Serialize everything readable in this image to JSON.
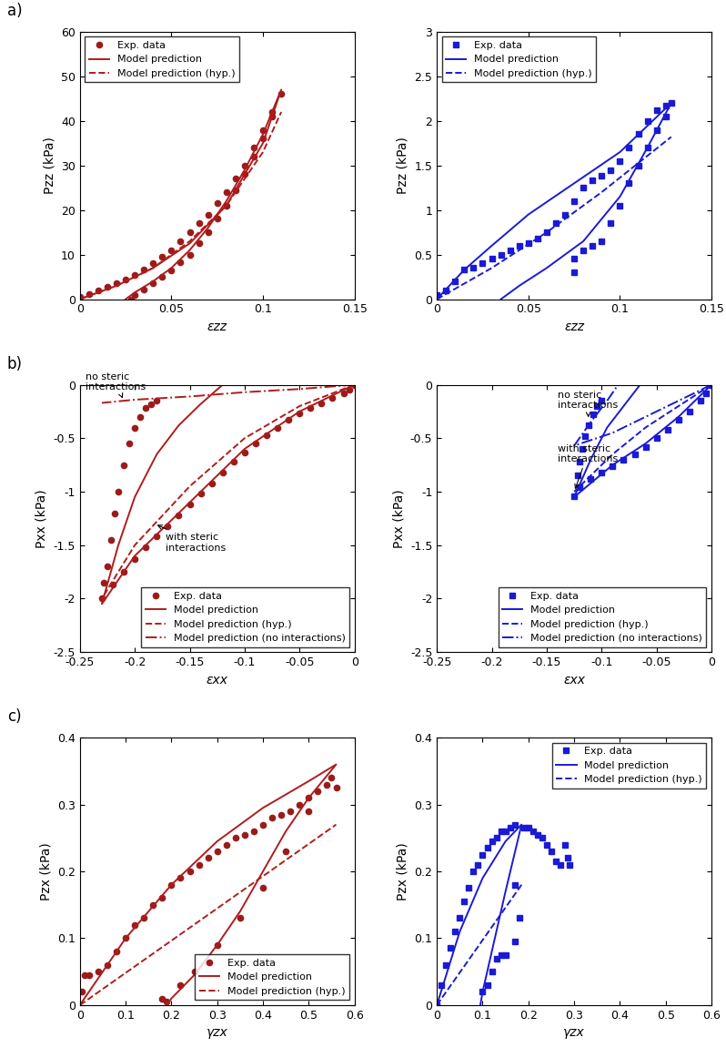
{
  "panel_labels": [
    "a)",
    "b)",
    "c)"
  ],
  "chart_data": [
    {
      "type": "line",
      "x_label": "εzz",
      "y_label": "Pzz (kPa)",
      "xlim": [
        0,
        0.15
      ],
      "xticks": [
        0,
        0.05,
        0.1,
        0.15
      ],
      "ylim": [
        0,
        60
      ],
      "yticks": [
        0,
        10,
        20,
        30,
        40,
        50,
        60
      ],
      "legend": "upper left",
      "series": [
        {
          "name": "Exp. data",
          "type": "scatter",
          "marker": "circle",
          "color": "#9b1b1b",
          "x": [
            0,
            0.005,
            0.01,
            0.015,
            0.02,
            0.025,
            0.03,
            0.035,
            0.04,
            0.045,
            0.05,
            0.055,
            0.06,
            0.065,
            0.07,
            0.075,
            0.08,
            0.085,
            0.09,
            0.095,
            0.1,
            0.105,
            0.11,
            0.105,
            0.1,
            0.095,
            0.09,
            0.085,
            0.08,
            0.075,
            0.07,
            0.065,
            0.06,
            0.055,
            0.05,
            0.045,
            0.04,
            0.035,
            0.03,
            0.028
          ],
          "values": [
            0.5,
            1.2,
            2,
            2.8,
            3.5,
            4.5,
            5.5,
            6.7,
            8,
            9.5,
            11,
            13,
            15,
            17,
            19,
            21.5,
            24,
            27,
            30,
            34,
            38,
            42,
            46,
            41,
            36,
            32,
            28,
            24.5,
            21,
            18,
            15,
            12.5,
            10,
            8.2,
            6.5,
            5,
            3.5,
            2.2,
            1,
            0
          ]
        },
        {
          "name": "Model prediction",
          "type": "line",
          "line_style": "solid",
          "color": "#b01c1c",
          "x": [
            0,
            0.02,
            0.04,
            0.06,
            0.08,
            0.1,
            0.11,
            0.1,
            0.09,
            0.08,
            0.07,
            0.06,
            0.05,
            0.04,
            0.03,
            0.025
          ],
          "values": [
            0,
            3,
            7,
            12.5,
            21,
            35,
            47,
            37,
            29,
            22,
            16,
            11,
            7,
            4,
            1.5,
            0
          ]
        },
        {
          "name": "Model prediction (hyp.)",
          "type": "line",
          "line_style": "dashed",
          "color": "#b01c1c",
          "x": [
            0,
            0.02,
            0.04,
            0.06,
            0.08,
            0.1,
            0.11
          ],
          "values": [
            0,
            3,
            7,
            13,
            21,
            33,
            42
          ]
        }
      ]
    },
    {
      "type": "line",
      "x_label": "εzz",
      "y_label": "Pzz (kPa)",
      "xlim": [
        0,
        0.15
      ],
      "xticks": [
        0,
        0.05,
        0.1,
        0.15
      ],
      "ylim": [
        0,
        3
      ],
      "yticks": [
        0,
        0.5,
        1,
        1.5,
        2,
        2.5,
        3
      ],
      "legend": "upper left",
      "series": [
        {
          "name": "Exp. data",
          "type": "scatter",
          "marker": "square",
          "color": "#1a1ad6",
          "x": [
            0,
            0.005,
            0.01,
            0.015,
            0.02,
            0.025,
            0.03,
            0.035,
            0.04,
            0.045,
            0.05,
            0.055,
            0.06,
            0.065,
            0.07,
            0.075,
            0.08,
            0.085,
            0.09,
            0.095,
            0.1,
            0.105,
            0.11,
            0.115,
            0.12,
            0.125,
            0.128,
            0.125,
            0.12,
            0.115,
            0.11,
            0.105,
            0.1,
            0.095,
            0.09,
            0.085,
            0.08,
            0.075,
            0.075
          ],
          "values": [
            0.05,
            0.1,
            0.2,
            0.33,
            0.35,
            0.4,
            0.45,
            0.5,
            0.55,
            0.6,
            0.63,
            0.68,
            0.75,
            0.85,
            0.95,
            1.1,
            1.25,
            1.33,
            1.38,
            1.45,
            1.55,
            1.7,
            1.85,
            2.0,
            2.12,
            2.17,
            2.2,
            2.05,
            1.9,
            1.7,
            1.5,
            1.3,
            1.05,
            0.85,
            0.65,
            0.6,
            0.55,
            0.45,
            0.3
          ]
        },
        {
          "name": "Model prediction",
          "type": "line",
          "line_style": "solid",
          "color": "#1a1ad6",
          "x": [
            0,
            0.015,
            0.03,
            0.05,
            0.075,
            0.1,
            0.128,
            0.115,
            0.1,
            0.08,
            0.06,
            0.045,
            0.035
          ],
          "values": [
            0,
            0.33,
            0.6,
            0.95,
            1.3,
            1.65,
            2.2,
            1.7,
            1.15,
            0.65,
            0.35,
            0.15,
            0
          ]
        },
        {
          "name": "Model prediction (hyp.)",
          "type": "line",
          "line_style": "dashed",
          "color": "#1a1ad6",
          "x": [
            0,
            0.03,
            0.06,
            0.09,
            0.128
          ],
          "values": [
            0,
            0.35,
            0.75,
            1.2,
            1.82
          ]
        }
      ]
    },
    {
      "type": "line",
      "x_label": "εxx",
      "y_label": "Pxx (kPa)",
      "xlim": [
        -0.25,
        0
      ],
      "xticks": [
        -0.25,
        -0.2,
        -0.15,
        -0.1,
        -0.05,
        0
      ],
      "ylim": [
        -2.5,
        0
      ],
      "yticks": [
        -2.5,
        -2,
        -1.5,
        -1,
        -0.5,
        0
      ],
      "legend": "lower right",
      "annotations": [
        {
          "text": "no steric\ninteractions",
          "xy": [
            -0.21,
            -0.15
          ],
          "xytext": [
            -0.245,
            -0.05
          ]
        },
        {
          "text": "with steric\ninteractions",
          "xy": [
            -0.182,
            -1.3
          ],
          "xytext": [
            -0.172,
            -1.55
          ]
        }
      ],
      "series": [
        {
          "name": "Exp. data",
          "type": "scatter",
          "marker": "circle",
          "color": "#9b1b1b",
          "x": [
            0,
            -0.005,
            -0.01,
            -0.02,
            -0.03,
            -0.04,
            -0.05,
            -0.06,
            -0.07,
            -0.08,
            -0.09,
            -0.1,
            -0.11,
            -0.12,
            -0.13,
            -0.14,
            -0.15,
            -0.16,
            -0.17,
            -0.18,
            -0.19,
            -0.2,
            -0.21,
            -0.22,
            -0.23,
            -0.228,
            -0.225,
            -0.222,
            -0.218,
            -0.215,
            -0.21,
            -0.205,
            -0.2,
            -0.195,
            -0.19,
            -0.185,
            -0.18
          ],
          "values": [
            0,
            -0.05,
            -0.08,
            -0.12,
            -0.17,
            -0.22,
            -0.27,
            -0.33,
            -0.4,
            -0.47,
            -0.55,
            -0.63,
            -0.72,
            -0.82,
            -0.92,
            -1.02,
            -1.12,
            -1.22,
            -1.32,
            -1.42,
            -1.52,
            -1.63,
            -1.75,
            -1.87,
            -2.0,
            -1.85,
            -1.7,
            -1.45,
            -1.2,
            -1.0,
            -0.75,
            -0.55,
            -0.4,
            -0.3,
            -0.22,
            -0.18,
            -0.15
          ]
        },
        {
          "name": "Model prediction",
          "type": "line",
          "line_style": "solid",
          "color": "#b01c1c",
          "x": [
            0,
            -0.05,
            -0.1,
            -0.15,
            -0.2,
            -0.23,
            -0.215,
            -0.2,
            -0.18,
            -0.16,
            -0.14,
            -0.12
          ],
          "values": [
            0,
            -0.25,
            -0.6,
            -1.1,
            -1.6,
            -2.05,
            -1.5,
            -1.05,
            -0.65,
            -0.38,
            -0.18,
            0
          ]
        },
        {
          "name": "Model prediction (hyp.)",
          "type": "line",
          "line_style": "dashed",
          "color": "#b01c1c",
          "x": [
            0,
            -0.05,
            -0.1,
            -0.15,
            -0.2,
            -0.23
          ],
          "values": [
            0,
            -0.2,
            -0.5,
            -0.95,
            -1.5,
            -2.0
          ]
        },
        {
          "name": "Model prediction (no interactions)",
          "type": "line",
          "line_style": "dashdot",
          "color": "#b01c1c",
          "x": [
            0,
            -0.05,
            -0.1,
            -0.15,
            -0.2,
            -0.23
          ],
          "values": [
            0,
            -0.04,
            -0.07,
            -0.11,
            -0.14,
            -0.17
          ]
        }
      ]
    },
    {
      "type": "line",
      "x_label": "εxx",
      "y_label": "Pxx (kPa)",
      "xlim": [
        -0.25,
        0
      ],
      "xticks": [
        -0.25,
        -0.2,
        -0.15,
        -0.1,
        -0.05,
        0
      ],
      "ylim": [
        -2.5,
        0
      ],
      "yticks": [
        -2.5,
        -2,
        -1.5,
        -1,
        -0.5,
        0
      ],
      "legend": "lower right",
      "annotations": [
        {
          "text": "no steric\ninteractions",
          "xy": [
            -0.112,
            -0.33
          ],
          "xytext": [
            -0.14,
            -0.22
          ]
        },
        {
          "text": "with steric\ninteractions",
          "xy": [
            -0.125,
            -1.0
          ],
          "xytext": [
            -0.14,
            -0.72
          ]
        }
      ],
      "series": [
        {
          "name": "Exp. data",
          "type": "scatter",
          "marker": "square",
          "color": "#1a1ad6",
          "x": [
            0,
            -0.005,
            -0.01,
            -0.02,
            -0.03,
            -0.04,
            -0.05,
            -0.06,
            -0.07,
            -0.08,
            -0.09,
            -0.1,
            -0.11,
            -0.12,
            -0.125,
            -0.122,
            -0.12,
            -0.118,
            -0.115,
            -0.112,
            -0.108,
            -0.104,
            -0.1
          ],
          "values": [
            0,
            -0.08,
            -0.15,
            -0.25,
            -0.33,
            -0.42,
            -0.5,
            -0.58,
            -0.65,
            -0.7,
            -0.76,
            -0.82,
            -0.88,
            -0.96,
            -1.04,
            -0.85,
            -0.72,
            -0.6,
            -0.48,
            -0.38,
            -0.28,
            -0.2,
            -0.15
          ]
        },
        {
          "name": "Model prediction",
          "type": "line",
          "line_style": "solid",
          "color": "#1a1ad6",
          "x": [
            0,
            -0.03,
            -0.06,
            -0.09,
            -0.125,
            -0.11,
            -0.095,
            -0.08,
            -0.065
          ],
          "values": [
            0,
            -0.3,
            -0.55,
            -0.75,
            -1.05,
            -0.7,
            -0.4,
            -0.2,
            0
          ]
        },
        {
          "name": "Model prediction (hyp.)",
          "type": "line",
          "line_style": "dashed",
          "color": "#1a1ad6",
          "x": [
            0,
            -0.03,
            -0.06,
            -0.09,
            -0.125
          ],
          "values": [
            0,
            -0.2,
            -0.4,
            -0.65,
            -1.0
          ]
        },
        {
          "name": "Model prediction (no interactions)",
          "type": "line",
          "line_style": "dashdot",
          "color": "#1a1ad6",
          "x": [
            0,
            -0.03,
            -0.06,
            -0.09,
            -0.125,
            -0.11,
            -0.095,
            -0.085
          ],
          "values": [
            0,
            -0.15,
            -0.3,
            -0.45,
            -0.57,
            -0.35,
            -0.15,
            0
          ]
        }
      ]
    },
    {
      "type": "line",
      "x_label": "γzx",
      "y_label": "Pzx (kPa)",
      "xlim": [
        0,
        0.6
      ],
      "xticks": [
        0,
        0.1,
        0.2,
        0.3,
        0.4,
        0.5,
        0.6
      ],
      "ylim": [
        0,
        0.4
      ],
      "yticks": [
        0,
        0.1,
        0.2,
        0.3,
        0.4
      ],
      "legend": "lower right",
      "series": [
        {
          "name": "Exp. data",
          "type": "scatter",
          "marker": "circle",
          "color": "#9b1b1b",
          "x": [
            0.005,
            0.01,
            0.02,
            0.04,
            0.06,
            0.08,
            0.1,
            0.12,
            0.14,
            0.16,
            0.18,
            0.2,
            0.22,
            0.24,
            0.26,
            0.28,
            0.3,
            0.32,
            0.34,
            0.36,
            0.38,
            0.4,
            0.42,
            0.44,
            0.46,
            0.48,
            0.5,
            0.52,
            0.54,
            0.56,
            0.55,
            0.5,
            0.45,
            0.4,
            0.35,
            0.3,
            0.25,
            0.22,
            0.19,
            0.18
          ],
          "values": [
            0.02,
            0.045,
            0.045,
            0.05,
            0.06,
            0.08,
            0.1,
            0.12,
            0.13,
            0.15,
            0.16,
            0.18,
            0.19,
            0.2,
            0.21,
            0.22,
            0.23,
            0.24,
            0.25,
            0.255,
            0.26,
            0.27,
            0.28,
            0.285,
            0.29,
            0.3,
            0.31,
            0.32,
            0.33,
            0.325,
            0.34,
            0.29,
            0.23,
            0.175,
            0.13,
            0.09,
            0.05,
            0.03,
            0.005,
            0.01
          ]
        },
        {
          "name": "Model prediction",
          "type": "line",
          "line_style": "solid",
          "color": "#b01c1c",
          "x": [
            0,
            0.1,
            0.2,
            0.3,
            0.4,
            0.5,
            0.56,
            0.5,
            0.45,
            0.4,
            0.35,
            0.3,
            0.25,
            0.2,
            0.19
          ],
          "values": [
            0,
            0.1,
            0.18,
            0.245,
            0.295,
            0.335,
            0.36,
            0.31,
            0.26,
            0.2,
            0.14,
            0.09,
            0.045,
            0.01,
            0
          ]
        },
        {
          "name": "Model prediction (hyp.)",
          "type": "line",
          "line_style": "dashed",
          "color": "#b01c1c",
          "x": [
            0,
            0.56
          ],
          "values": [
            0,
            0.27
          ]
        }
      ]
    },
    {
      "type": "line",
      "x_label": "γzx",
      "y_label": "Pzx (kPa)",
      "xlim": [
        0,
        0.6
      ],
      "xticks": [
        0,
        0.1,
        0.2,
        0.3,
        0.4,
        0.5,
        0.6
      ],
      "ylim": [
        0,
        0.4
      ],
      "yticks": [
        0,
        0.1,
        0.2,
        0.3,
        0.4
      ],
      "legend": "upper right",
      "series": [
        {
          "name": "Exp. data",
          "type": "scatter",
          "marker": "square",
          "color": "#1a1ad6",
          "x": [
            0,
            0.01,
            0.02,
            0.03,
            0.04,
            0.05,
            0.06,
            0.07,
            0.08,
            0.09,
            0.1,
            0.11,
            0.12,
            0.13,
            0.14,
            0.15,
            0.16,
            0.17,
            0.19,
            0.2,
            0.21,
            0.22,
            0.23,
            0.24,
            0.25,
            0.26,
            0.27,
            0.28,
            0.285,
            0.29,
            0.17,
            0.18,
            0.17,
            0.15,
            0.14,
            0.13,
            0.12,
            0.11,
            0.1
          ],
          "values": [
            0,
            0.03,
            0.06,
            0.085,
            0.11,
            0.13,
            0.155,
            0.175,
            0.2,
            0.21,
            0.225,
            0.235,
            0.245,
            0.25,
            0.26,
            0.26,
            0.265,
            0.27,
            0.265,
            0.265,
            0.26,
            0.255,
            0.25,
            0.24,
            0.23,
            0.215,
            0.21,
            0.24,
            0.22,
            0.21,
            0.18,
            0.13,
            0.095,
            0.075,
            0.075,
            0.07,
            0.05,
            0.03,
            0.02
          ]
        },
        {
          "name": "Model prediction",
          "type": "line",
          "line_style": "solid",
          "color": "#1a1ad6",
          "x": [
            0,
            0.05,
            0.1,
            0.15,
            0.185,
            0.15,
            0.12,
            0.1,
            0.095
          ],
          "values": [
            0,
            0.11,
            0.19,
            0.245,
            0.27,
            0.17,
            0.08,
            0.02,
            0
          ]
        },
        {
          "name": "Model prediction (hyp.)",
          "type": "line",
          "line_style": "dashed",
          "color": "#1a1ad6",
          "x": [
            0,
            0.185
          ],
          "values": [
            0,
            0.18
          ]
        }
      ]
    }
  ]
}
